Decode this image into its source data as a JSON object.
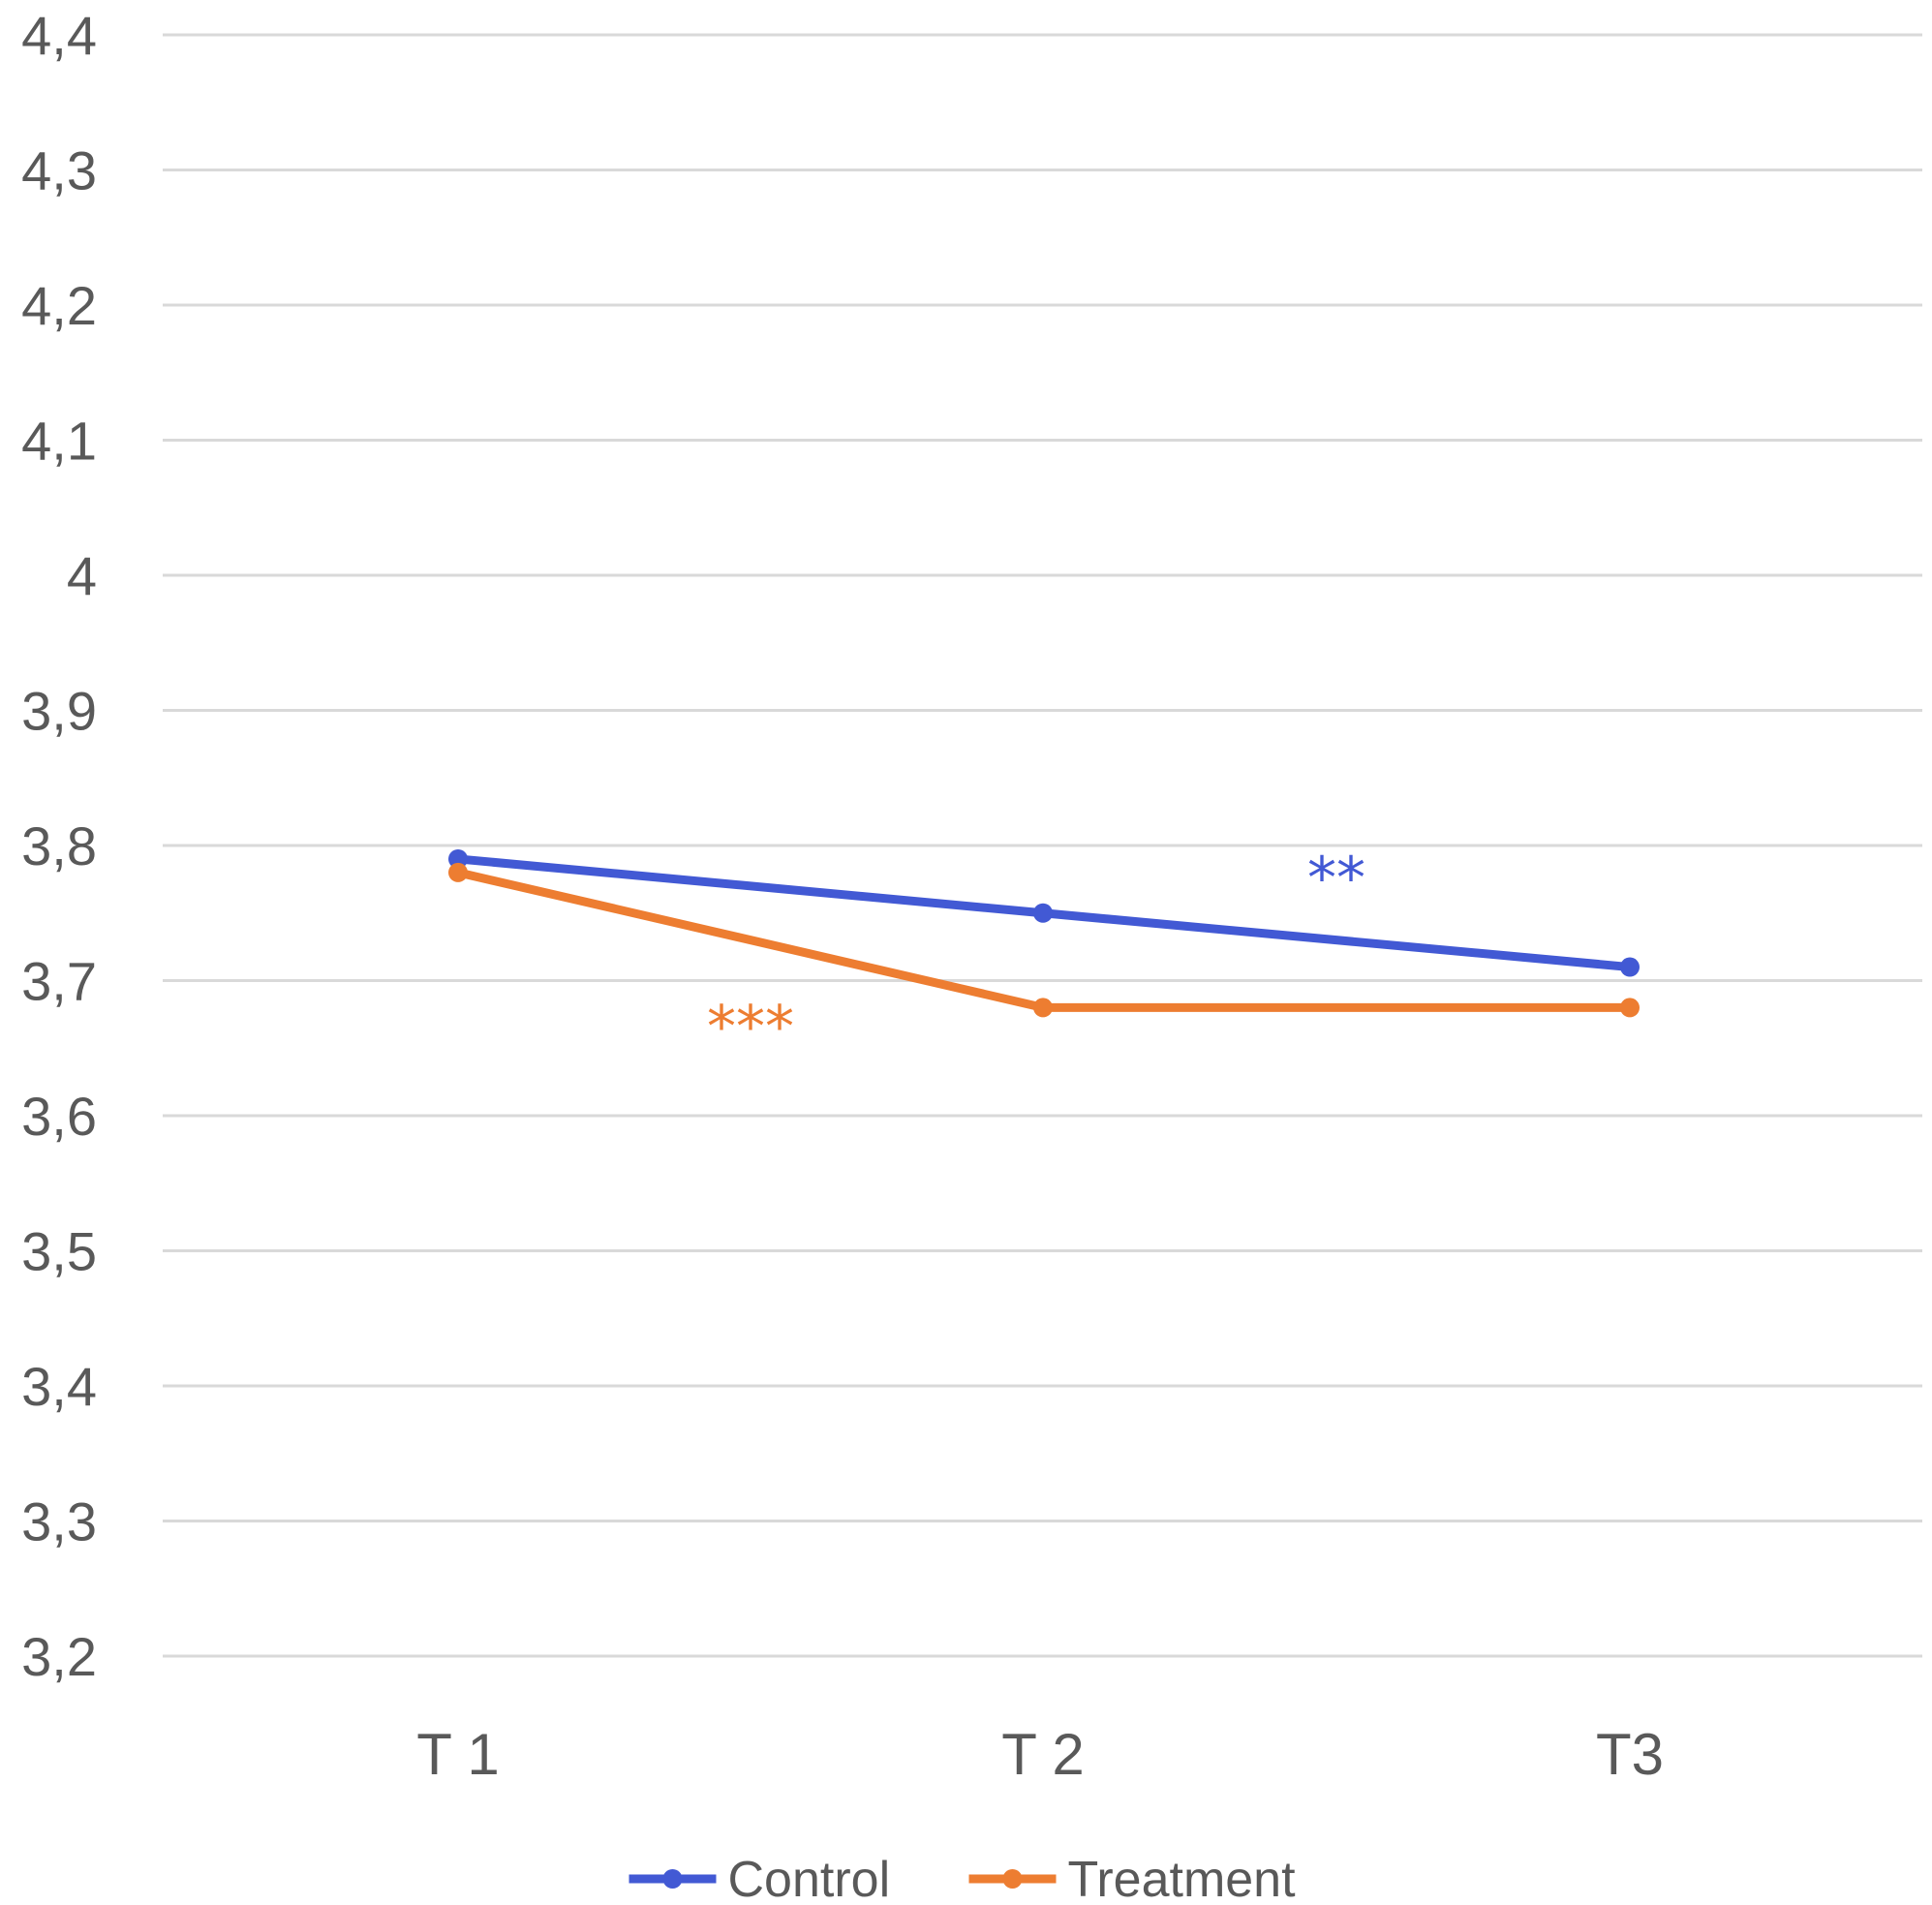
{
  "chart_data": {
    "type": "line",
    "categories": [
      "T 1",
      "T 2",
      "T3"
    ],
    "series": [
      {
        "name": "Control",
        "values": [
          3.79,
          3.75,
          3.71
        ],
        "color": "#4259D4"
      },
      {
        "name": "Treatment",
        "values": [
          3.78,
          3.68,
          3.68
        ],
        "color": "#ED7D31"
      }
    ],
    "yticks": [
      "4,4",
      "4,3",
      "4,2",
      "4,1",
      "4",
      "3,9",
      "3,8",
      "3,7",
      "3,6",
      "3,5",
      "3,4",
      "3,3",
      "3,2"
    ],
    "ylim": [
      3.2,
      4.4
    ],
    "grid": true,
    "legend_position": "bottom",
    "annotations": [
      {
        "text": "**",
        "series": "Control",
        "x": 1.5,
        "y": 3.79,
        "color": "#4259D4"
      },
      {
        "text": "***",
        "series": "Treatment",
        "x": 0.5,
        "y": 3.68,
        "color": "#ED7D31"
      }
    ]
  }
}
